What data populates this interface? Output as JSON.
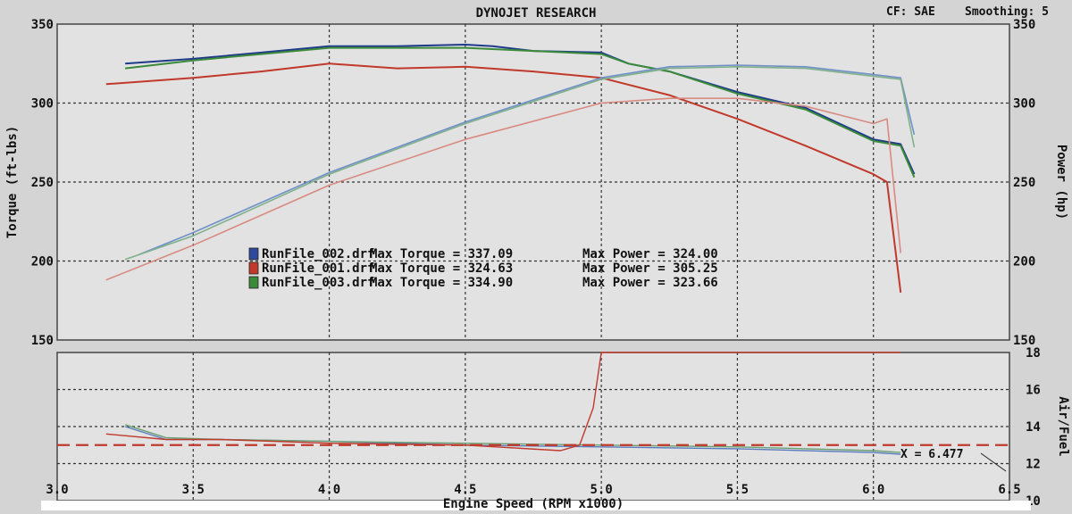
{
  "header": {
    "title": "DYNOJET RESEARCH",
    "cf_label": "CF: SAE",
    "smoothing_label": "Smoothing: 5"
  },
  "chart_data": [
    {
      "type": "line",
      "xlabel": "Engine Speed (RPM x1000)",
      "xlim": [
        3.0,
        6.5
      ],
      "xticks": [
        "3.0",
        "3.5",
        "4.0",
        "4.5",
        "5.0",
        "5.5",
        "6.0",
        "6.5"
      ],
      "ylabel": "Torque (ft-lbs)",
      "ylim": [
        150,
        350
      ],
      "yticks": [
        "150",
        "200",
        "250",
        "300",
        "350"
      ],
      "y2label": "Power (hp)",
      "y2lim": [
        150,
        350
      ],
      "y2ticks": [
        "150",
        "200",
        "250",
        "300",
        "350"
      ],
      "grid": true,
      "legend_position": "center-left",
      "legend": [
        {
          "file": "RunFile_002.drf",
          "torque_text": "Max Torque = 337.09",
          "power_text": "Max Power = 324.00",
          "color": "#2f4a9c"
        },
        {
          "file": "RunFile_001.drf",
          "torque_text": "Max Torque = 324.63",
          "power_text": "Max Power = 305.25",
          "color": "#c0392b"
        },
        {
          "file": "RunFile_003.drf",
          "torque_text": "Max Torque = 334.90",
          "power_text": "Max Power = 323.66",
          "color": "#3a8a3a"
        }
      ],
      "series": [
        {
          "kind": "torque",
          "color": "#1f3a8a",
          "x": [
            3.25,
            3.5,
            3.75,
            4.0,
            4.25,
            4.5,
            4.6,
            4.75,
            5.0,
            5.1,
            5.25,
            5.5,
            5.75,
            6.0,
            6.1,
            6.15
          ],
          "y": [
            325,
            328,
            332,
            336,
            336,
            337,
            336,
            333,
            332,
            325,
            320,
            307,
            297,
            277,
            274,
            255
          ]
        },
        {
          "kind": "torque",
          "color": "#3a8a3a",
          "x": [
            3.25,
            3.5,
            3.75,
            4.0,
            4.25,
            4.5,
            4.75,
            5.0,
            5.1,
            5.25,
            5.5,
            5.75,
            6.0,
            6.1,
            6.15
          ],
          "y": [
            322,
            327,
            331,
            335,
            335,
            335,
            333,
            331,
            325,
            320,
            306,
            296,
            276,
            273,
            253
          ]
        },
        {
          "kind": "torque",
          "color": "#c0392b",
          "x": [
            3.18,
            3.5,
            3.75,
            4.0,
            4.25,
            4.5,
            4.75,
            5.0,
            5.25,
            5.5,
            5.75,
            6.0,
            6.05,
            6.1
          ],
          "y": [
            312,
            316,
            320,
            325,
            322,
            323,
            320,
            316,
            305,
            290,
            273,
            255,
            250,
            180
          ]
        },
        {
          "kind": "power",
          "color": "#6f8fc8",
          "x": [
            3.3,
            3.5,
            4.0,
            4.5,
            5.0,
            5.25,
            5.5,
            5.75,
            6.0,
            6.1,
            6.15
          ],
          "y": [
            204,
            218,
            256,
            288,
            316,
            323,
            324,
            323,
            318,
            316,
            280
          ]
        },
        {
          "kind": "power",
          "color": "#7fb08a",
          "x": [
            3.25,
            3.5,
            4.0,
            4.5,
            5.0,
            5.25,
            5.5,
            5.75,
            6.0,
            6.1,
            6.15
          ],
          "y": [
            201,
            216,
            255,
            287,
            315,
            322,
            323,
            322,
            317,
            315,
            272
          ]
        },
        {
          "kind": "power",
          "color": "#d88a80",
          "x": [
            3.18,
            3.5,
            4.0,
            4.5,
            5.0,
            5.25,
            5.5,
            5.75,
            6.0,
            6.05,
            6.1
          ],
          "y": [
            188,
            210,
            248,
            277,
            300,
            303,
            303,
            298,
            287,
            290,
            205
          ]
        }
      ]
    },
    {
      "type": "line",
      "ylabel": "Air/Fuel",
      "ylim": [
        10,
        18
      ],
      "yticks": [
        "10",
        "12",
        "14",
        "16",
        "18"
      ],
      "xlim": [
        3.0,
        6.5
      ],
      "grid": true,
      "reference_line": {
        "y": 13.0,
        "color": "#c0392b",
        "style": "dashed"
      },
      "cursor_readout": "X = 6.477",
      "series": [
        {
          "color": "#5a7ac0",
          "x": [
            3.25,
            3.4,
            3.6,
            4.0,
            4.5,
            5.0,
            5.5,
            6.0,
            6.1
          ],
          "y": [
            14.0,
            13.3,
            13.3,
            13.2,
            13.0,
            12.9,
            12.8,
            12.6,
            12.5
          ]
        },
        {
          "color": "#6aa070",
          "x": [
            3.25,
            3.4,
            3.6,
            4.0,
            4.5,
            5.0,
            5.5,
            6.0,
            6.1
          ],
          "y": [
            14.1,
            13.4,
            13.3,
            13.2,
            13.1,
            13.0,
            12.9,
            12.7,
            12.6
          ]
        },
        {
          "color": "#c0392b",
          "x": [
            3.18,
            3.4,
            3.6,
            4.0,
            4.5,
            4.85,
            4.92,
            4.97,
            5.0,
            5.5,
            6.0,
            6.1
          ],
          "y": [
            13.6,
            13.3,
            13.3,
            13.1,
            13.0,
            12.7,
            13.0,
            15.0,
            18.0,
            18.0,
            18.0,
            18.0
          ]
        }
      ]
    }
  ]
}
